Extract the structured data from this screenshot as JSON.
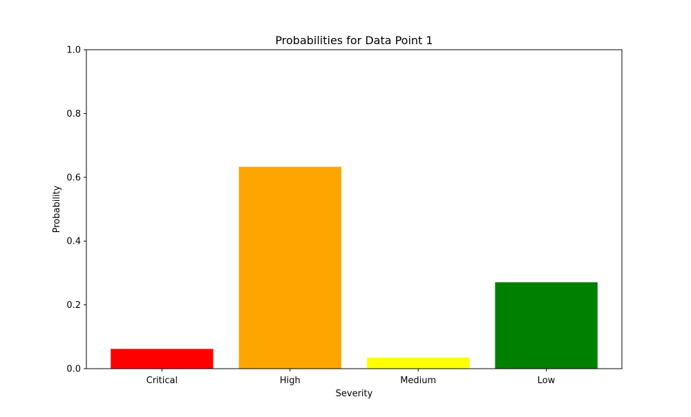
{
  "chart_data": {
    "type": "bar",
    "title": "Probabilities for Data Point 1",
    "xlabel": "Severity",
    "ylabel": "Probability",
    "categories": [
      "Critical",
      "High",
      "Medium",
      "Low"
    ],
    "values": [
      0.062,
      0.633,
      0.035,
      0.271
    ],
    "colors": [
      "#ff0000",
      "#ffa500",
      "#ffff00",
      "#008000"
    ],
    "ylim": [
      0,
      1.0
    ],
    "yticks": [
      0.0,
      0.2,
      0.4,
      0.6,
      0.8,
      1.0
    ],
    "ytick_labels": [
      "0.0",
      "0.2",
      "0.4",
      "0.6",
      "0.8",
      "1.0"
    ],
    "grid": false,
    "legend": "none"
  }
}
